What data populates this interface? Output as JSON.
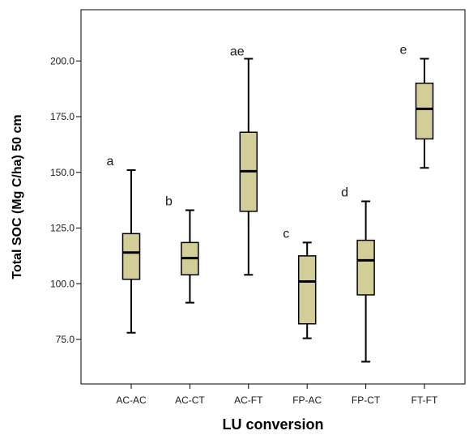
{
  "chart_data": {
    "type": "box",
    "title": "",
    "xlabel": "LU conversion",
    "ylabel": "Total SOC (Mg C/ha) 50 cm",
    "ylim": [
      55,
      223
    ],
    "yticks": [
      75.0,
      100.0,
      125.0,
      150.0,
      175.0,
      200.0
    ],
    "ytick_labels": [
      "75.0",
      "100.0",
      "125.0",
      "150.0",
      "175.0",
      "200.0"
    ],
    "categories": [
      "AC-AC",
      "AC-CT",
      "AC-FT",
      "FP-AC",
      "FP-CT",
      "FT-FT"
    ],
    "letters": [
      "a",
      "b",
      "ae",
      "c",
      "d",
      "e"
    ],
    "boxes": [
      {
        "min": 78,
        "q1": 102,
        "median": 114,
        "q3": 122.5,
        "max": 151
      },
      {
        "min": 91.5,
        "q1": 104,
        "median": 111.5,
        "q3": 118.5,
        "max": 133
      },
      {
        "min": 104,
        "q1": 132.5,
        "median": 150.5,
        "q3": 168,
        "max": 201
      },
      {
        "min": 75.5,
        "q1": 82,
        "median": 101,
        "q3": 112.5,
        "max": 118.5
      },
      {
        "min": 65,
        "q1": 95,
        "median": 110.5,
        "q3": 119.5,
        "max": 137
      },
      {
        "min": 152,
        "q1": 165,
        "median": 178.5,
        "q3": 190,
        "max": 201
      }
    ],
    "box_color": "#d3cd98",
    "grid": false,
    "legend": "none"
  }
}
